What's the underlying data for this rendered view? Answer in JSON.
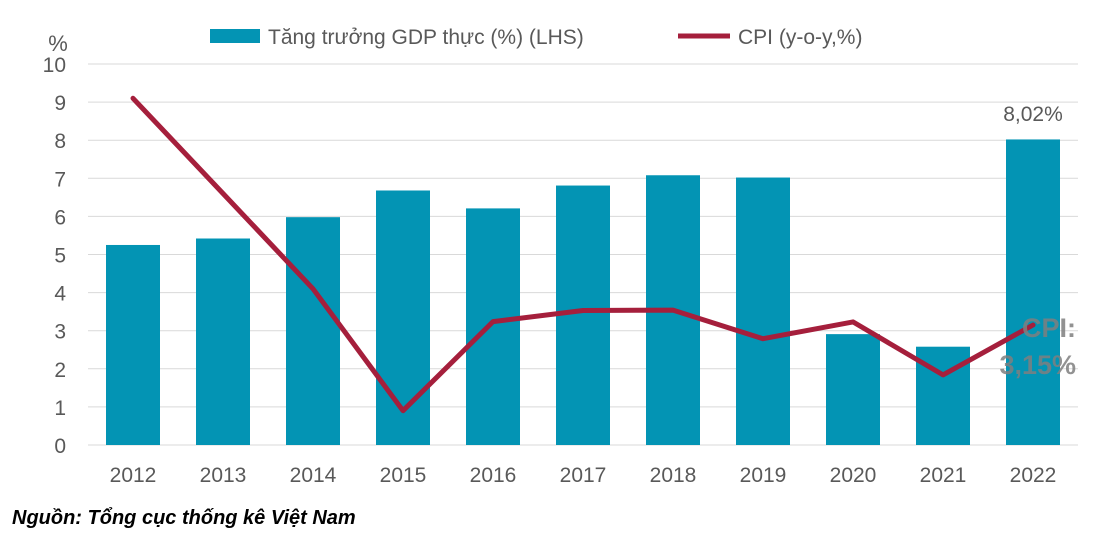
{
  "chart_data": {
    "type": "bar",
    "y_unit": "%",
    "ylim": [
      0,
      10
    ],
    "y_ticks": [
      "0",
      "1",
      "2",
      "3",
      "4",
      "5",
      "6",
      "7",
      "8",
      "9",
      "10"
    ],
    "categories": [
      "2012",
      "2013",
      "2014",
      "2015",
      "2016",
      "2017",
      "2018",
      "2019",
      "2020",
      "2021",
      "2022"
    ],
    "grid": true,
    "legend_position": "top",
    "series": [
      {
        "name": "Tăng trưởng GDP thực (%) (LHS)",
        "type": "bar",
        "color": "#0394b4",
        "values": [
          5.25,
          5.42,
          5.98,
          6.68,
          6.21,
          6.81,
          7.08,
          7.02,
          2.91,
          2.58,
          8.02
        ]
      },
      {
        "name": "CPI (y-o-y,%)",
        "type": "line",
        "color": "#a51f3c",
        "values": [
          9.1,
          6.6,
          4.1,
          0.9,
          3.24,
          3.53,
          3.54,
          2.79,
          3.23,
          1.84,
          3.15
        ]
      }
    ],
    "annotations": {
      "gdp_2022": "8,02%",
      "cpi_line1": "CPI:",
      "cpi_line2": "3,15%"
    }
  },
  "source": "Nguồn: Tổng cục thống kê Việt Nam"
}
